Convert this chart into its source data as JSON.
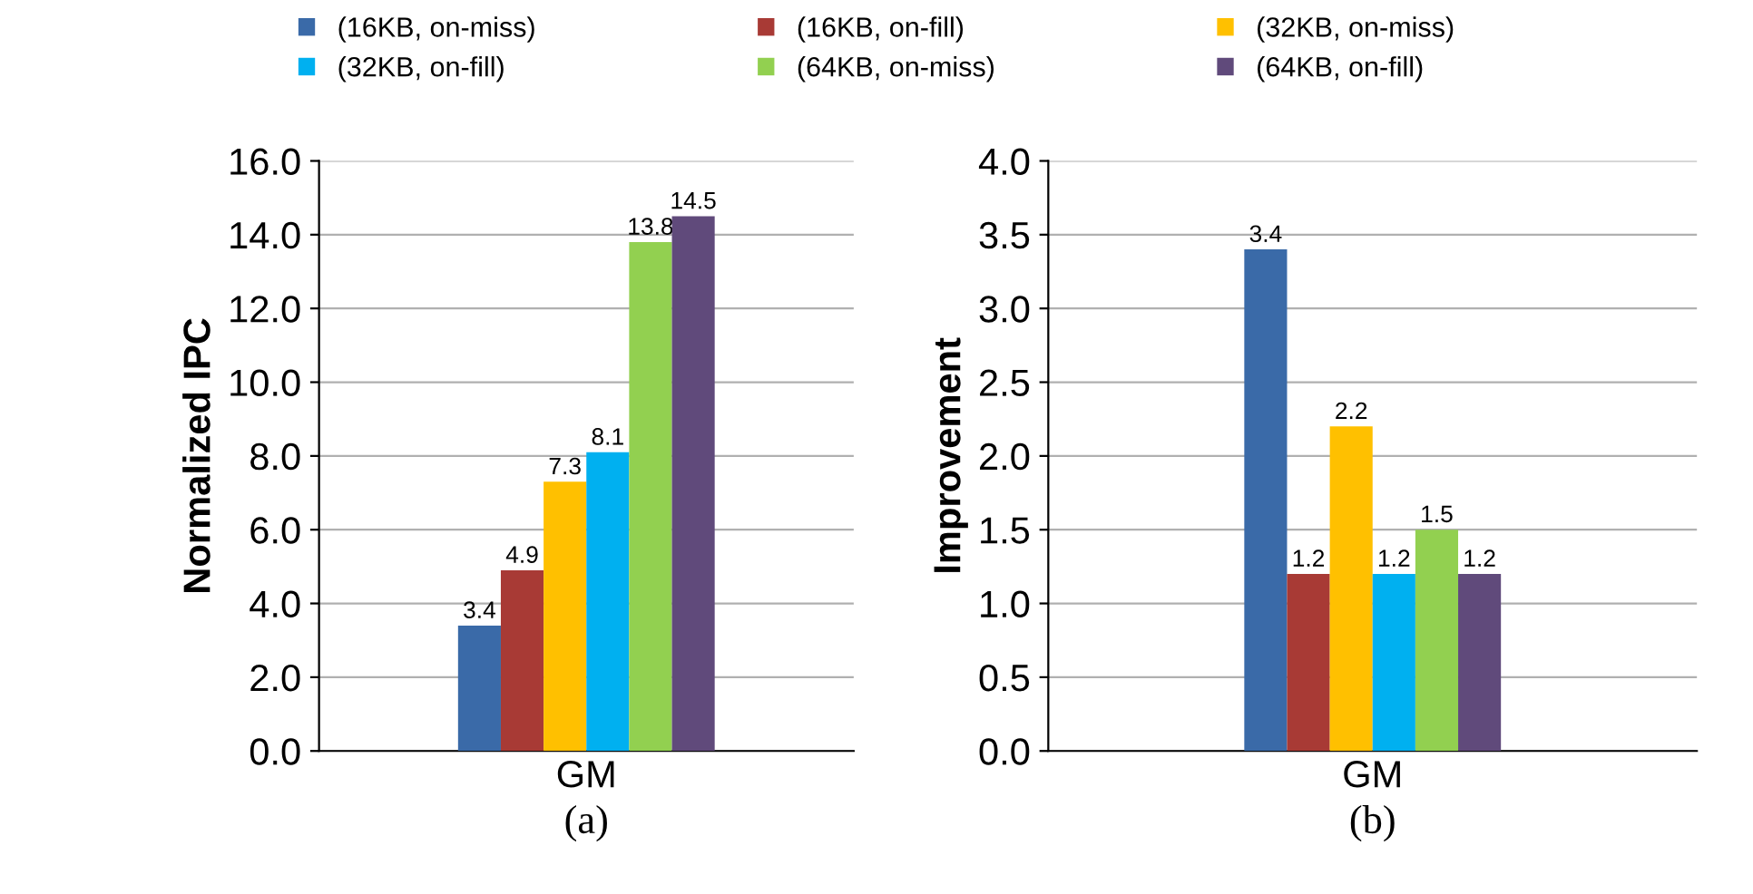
{
  "chart_data": [
    {
      "type": "bar",
      "categories": [
        "GM"
      ],
      "xlabel": "(a)",
      "ylabel": "Normalized IPC",
      "ylim": [
        0,
        16
      ],
      "yticks": [
        {
          "value": 0,
          "label": "0.0"
        },
        {
          "value": 2,
          "label": "2.0"
        },
        {
          "value": 4,
          "label": "4.0"
        },
        {
          "value": 6,
          "label": "6.0"
        },
        {
          "value": 8,
          "label": "8.0"
        },
        {
          "value": 10,
          "label": "10.0"
        },
        {
          "value": 12,
          "label": "12.0"
        },
        {
          "value": 14,
          "label": "14.0"
        },
        {
          "value": 16,
          "label": "16.0"
        }
      ],
      "grid": "y",
      "data_labels": true,
      "legend": "top",
      "series": [
        {
          "name": "(16KB, on-miss)",
          "color": "#3a6aa8",
          "values": [
            3.4
          ]
        },
        {
          "name": "(16KB, on-fill)",
          "color": "#a83a35",
          "values": [
            4.9
          ]
        },
        {
          "name": "(32KB, on-miss)",
          "color": "#ffc000",
          "values": [
            7.3
          ]
        },
        {
          "name": "(32KB, on-fill)",
          "color": "#00b0f0",
          "values": [
            8.1
          ]
        },
        {
          "name": "(64KB, on-miss)",
          "color": "#92d050",
          "values": [
            13.8
          ]
        },
        {
          "name": "(64KB, on-fill)",
          "color": "#604a7b",
          "values": [
            14.5
          ]
        }
      ]
    },
    {
      "type": "bar",
      "categories": [
        "GM"
      ],
      "xlabel": "(b)",
      "ylabel": "Improvement",
      "ylim": [
        0,
        4
      ],
      "yticks": [
        {
          "value": 0,
          "label": "0.0"
        },
        {
          "value": 0.5,
          "label": "0.5"
        },
        {
          "value": 1,
          "label": "1.0"
        },
        {
          "value": 1.5,
          "label": "1.5"
        },
        {
          "value": 2,
          "label": "2.0"
        },
        {
          "value": 2.5,
          "label": "2.5"
        },
        {
          "value": 3,
          "label": "3.0"
        },
        {
          "value": 3.5,
          "label": "3.5"
        },
        {
          "value": 4,
          "label": "4.0"
        }
      ],
      "grid": "y",
      "data_labels": true,
      "series": [
        {
          "color": "#3a6aa8",
          "values": [
            3.4
          ]
        },
        {
          "color": "#a83a35",
          "values": [
            1.2
          ]
        },
        {
          "color": "#ffc000",
          "values": [
            2.2
          ]
        },
        {
          "color": "#00b0f0",
          "values": [
            1.2
          ]
        },
        {
          "color": "#92d050",
          "values": [
            1.5
          ]
        },
        {
          "color": "#604a7b",
          "values": [
            1.2
          ]
        }
      ]
    }
  ]
}
